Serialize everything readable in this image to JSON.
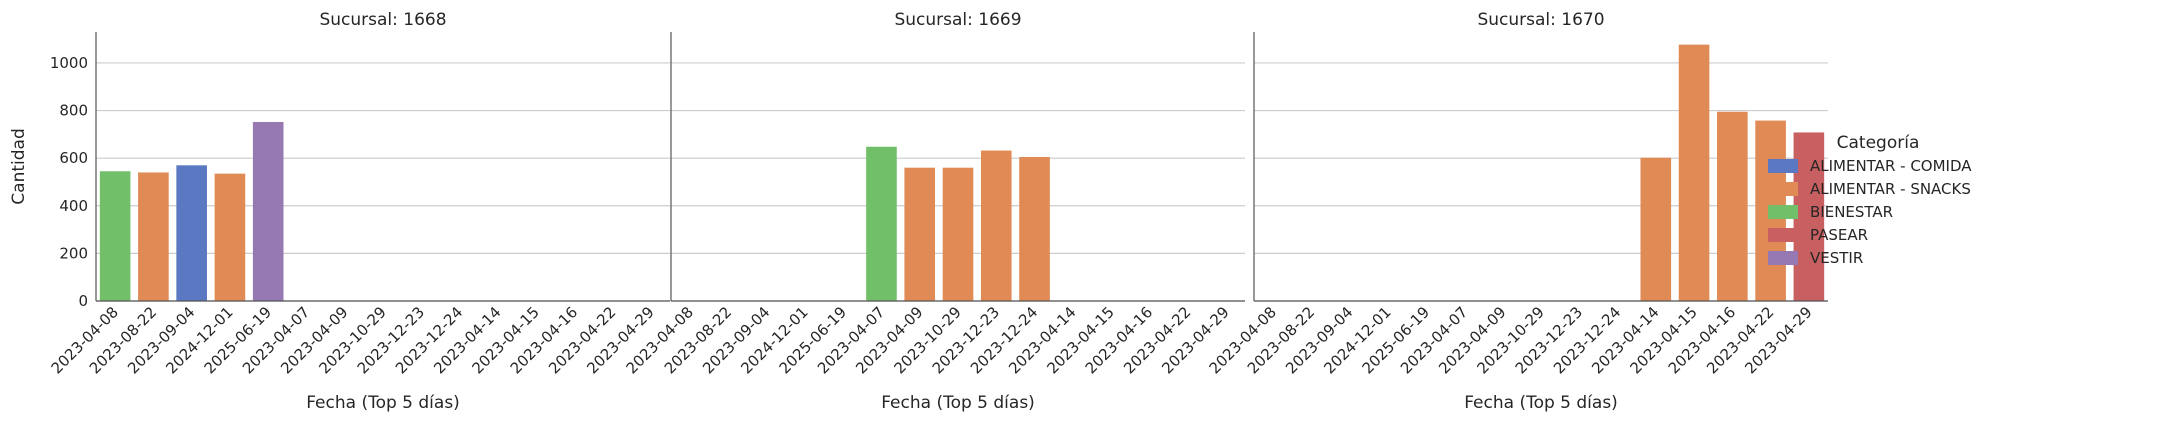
{
  "chart_data": {
    "type": "bar",
    "ylabel": "Cantidad",
    "xlabel": "Fecha (Top 5 días)",
    "ylim": [
      0,
      1130
    ],
    "yticks": [
      0,
      200,
      400,
      600,
      800,
      1000
    ],
    "grid": true,
    "legend_placement": "right",
    "categories": [
      "2023-04-08",
      "2023-08-22",
      "2023-09-04",
      "2024-12-01",
      "2025-06-19",
      "2023-04-07",
      "2023-04-09",
      "2023-10-29",
      "2023-12-23",
      "2023-12-24",
      "2023-04-14",
      "2023-04-15",
      "2023-04-16",
      "2023-04-22",
      "2023-04-29"
    ],
    "legend": {
      "title": "Categoría",
      "items": [
        {
          "label": "ALIMENTAR - COMIDA",
          "color": "#5a79c2"
        },
        {
          "label": "ALIMENTAR - SNACKS",
          "color": "#e08a55"
        },
        {
          "label": "BIENESTAR",
          "color": "#72bf6a"
        },
        {
          "label": "PASEAR",
          "color": "#c85f60"
        },
        {
          "label": "VESTIR",
          "color": "#9679b2"
        }
      ]
    },
    "panels": [
      {
        "title": "Sucursal: 1668",
        "bars": [
          {
            "category": "2023-04-08",
            "value": 545,
            "series": 2
          },
          {
            "category": "2023-08-22",
            "value": 540,
            "series": 1
          },
          {
            "category": "2023-09-04",
            "value": 570,
            "series": 0
          },
          {
            "category": "2024-12-01",
            "value": 535,
            "series": 1
          },
          {
            "category": "2025-06-19",
            "value": 752,
            "series": 4
          }
        ]
      },
      {
        "title": "Sucursal: 1669",
        "bars": [
          {
            "category": "2023-04-07",
            "value": 648,
            "series": 2
          },
          {
            "category": "2023-04-09",
            "value": 560,
            "series": 1
          },
          {
            "category": "2023-10-29",
            "value": 560,
            "series": 1
          },
          {
            "category": "2023-12-23",
            "value": 632,
            "series": 1
          },
          {
            "category": "2023-12-24",
            "value": 605,
            "series": 1
          }
        ]
      },
      {
        "title": "Sucursal: 1670",
        "bars": [
          {
            "category": "2023-04-14",
            "value": 602,
            "series": 1
          },
          {
            "category": "2023-04-15",
            "value": 1077,
            "series": 1
          },
          {
            "category": "2023-04-16",
            "value": 795,
            "series": 1
          },
          {
            "category": "2023-04-22",
            "value": 758,
            "series": 1
          },
          {
            "category": "2023-04-29",
            "value": 708,
            "series": 3
          }
        ]
      }
    ]
  }
}
